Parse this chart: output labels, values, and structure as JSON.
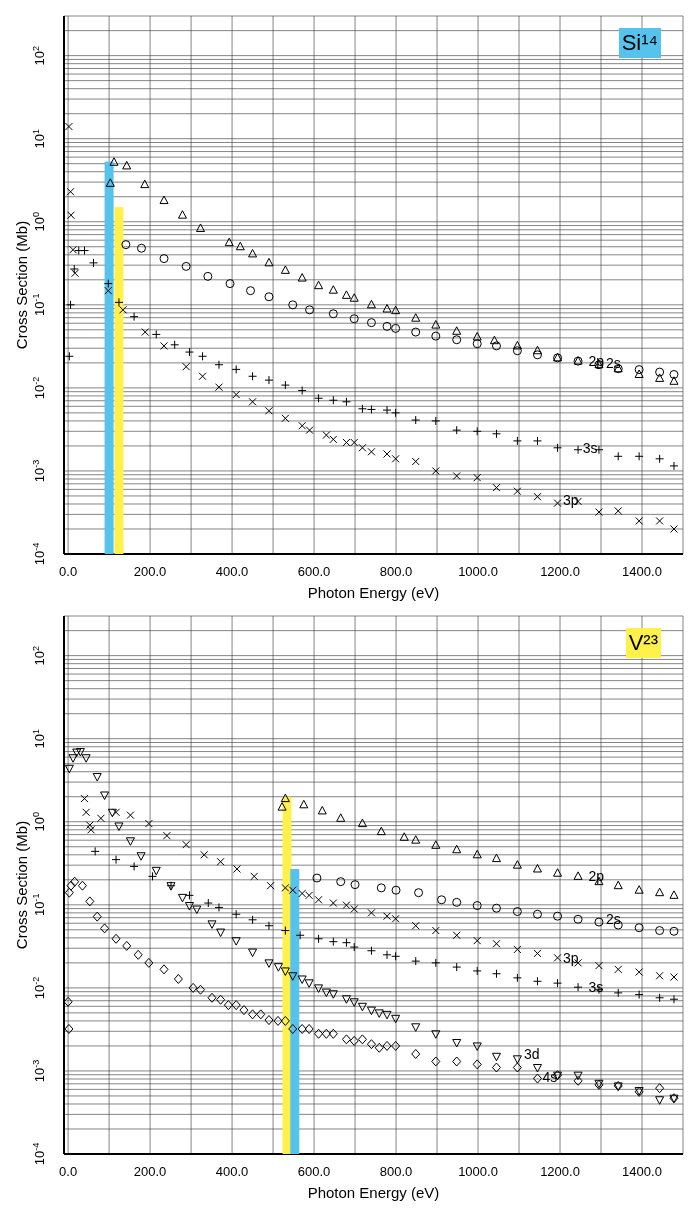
{
  "chart_data": [
    {
      "type": "scatter",
      "title": "Si¹⁴",
      "xlabel": "Photon Energy (eV)",
      "ylabel": "Cross Section (Mb)",
      "log": true,
      "grid": true,
      "xlim": [
        -10,
        1500
      ],
      "ylim": [
        0.0001,
        300
      ],
      "xticks": [
        {
          "value": 0,
          "label": "0.0"
        },
        {
          "value": 100,
          "label": null
        },
        {
          "value": 200,
          "label": "200.0"
        },
        {
          "value": 300,
          "label": null
        },
        {
          "value": 400,
          "label": "400.0"
        },
        {
          "value": 500,
          "label": null
        },
        {
          "value": 600,
          "label": "600.0"
        },
        {
          "value": 700,
          "label": null
        },
        {
          "value": 800,
          "label": "800.0"
        },
        {
          "value": 900,
          "label": null
        },
        {
          "value": 1000,
          "label": "1000.0"
        },
        {
          "value": 1100,
          "label": null
        },
        {
          "value": 1200,
          "label": "1200.0"
        },
        {
          "value": 1300,
          "label": null
        },
        {
          "value": 1400,
          "label": "1400.0"
        }
      ],
      "yticks": [
        {
          "value": 0.0001,
          "label": "10$^{-4}$"
        },
        {
          "value": 0.0002,
          "label": null
        },
        {
          "value": 0.0003,
          "label": null
        },
        {
          "value": 0.0004,
          "label": null
        },
        {
          "value": 0.0005,
          "label": null
        },
        {
          "value": 0.0006,
          "label": null
        },
        {
          "value": 0.0007,
          "label": null
        },
        {
          "value": 0.0008,
          "label": null
        },
        {
          "value": 0.0009,
          "label": null
        },
        {
          "value": 0.001,
          "label": "10$^{-3}$"
        },
        {
          "value": 0.002,
          "label": null
        },
        {
          "value": 0.003,
          "label": null
        },
        {
          "value": 0.004,
          "label": null
        },
        {
          "value": 0.005,
          "label": null
        },
        {
          "value": 0.006,
          "label": null
        },
        {
          "value": 0.007,
          "label": null
        },
        {
          "value": 0.008,
          "label": null
        },
        {
          "value": 0.009,
          "label": null
        },
        {
          "value": 0.01,
          "label": "10$^{-2}$"
        },
        {
          "value": 0.02,
          "label": null
        },
        {
          "value": 0.03,
          "label": null
        },
        {
          "value": 0.04,
          "label": null
        },
        {
          "value": 0.05,
          "label": null
        },
        {
          "value": 0.06,
          "label": null
        },
        {
          "value": 0.07,
          "label": null
        },
        {
          "value": 0.08,
          "label": null
        },
        {
          "value": 0.09,
          "label": null
        },
        {
          "value": 0.1,
          "label": "10$^{-1}$"
        },
        {
          "value": 0.2,
          "label": null
        },
        {
          "value": 0.3,
          "label": null
        },
        {
          "value": 0.4,
          "label": null
        },
        {
          "value": 0.5,
          "label": null
        },
        {
          "value": 0.6,
          "label": null
        },
        {
          "value": 0.7,
          "label": null
        },
        {
          "value": 0.8,
          "label": null
        },
        {
          "value": 0.9,
          "label": null
        },
        {
          "value": 1,
          "label": "10$^{0}$"
        },
        {
          "value": 2,
          "label": null
        },
        {
          "value": 3,
          "label": null
        },
        {
          "value": 4,
          "label": null
        },
        {
          "value": 5,
          "label": null
        },
        {
          "value": 6,
          "label": null
        },
        {
          "value": 7,
          "label": null
        },
        {
          "value": 8,
          "label": null
        },
        {
          "value": 9,
          "label": null
        },
        {
          "value": 10,
          "label": "10$^{1}$"
        },
        {
          "value": 20,
          "label": null
        },
        {
          "value": 30,
          "label": null
        },
        {
          "value": 40,
          "label": null
        },
        {
          "value": 50,
          "label": null
        },
        {
          "value": 60,
          "label": null
        },
        {
          "value": 70,
          "label": null
        },
        {
          "value": 80,
          "label": null
        },
        {
          "value": 90,
          "label": null
        },
        {
          "value": 100,
          "label": "10$^{2}$"
        },
        {
          "value": 200,
          "label": null
        }
      ],
      "series": [
        {
          "type": "bar",
          "color": "#55c3ec",
          "x": [
            100
          ],
          "values": [
            5.3
          ]
        },
        {
          "type": "bar",
          "color": "#fff04a",
          "x": [
            124
          ],
          "values": [
            1.5
          ]
        },
        {
          "marker": "triangle",
          "color": "#000000",
          "x": [
            103,
            112,
            143,
            187,
            234,
            279,
            323,
            393,
            420,
            450,
            490,
            530,
            571,
            611,
            647,
            679,
            698,
            740,
            778,
            799,
            848,
            897,
            948,
            998,
            1040,
            1096,
            1145,
            1194,
            1244,
            1295,
            1342,
            1393,
            1443,
            1478
          ],
          "values": [
            2.9,
            5.2,
            4.7,
            2.8,
            1.8,
            1.2,
            0.83,
            0.56,
            0.5,
            0.41,
            0.32,
            0.26,
            0.21,
            0.17,
            0.15,
            0.13,
            0.12,
            0.1,
            0.089,
            0.085,
            0.069,
            0.057,
            0.048,
            0.041,
            0.037,
            0.032,
            0.028,
            0.023,
            0.021,
            0.019,
            0.017,
            0.0145,
            0.013,
            0.012
          ]
        },
        {
          "marker": "circle",
          "color": "#000000",
          "x": [
            141,
            179,
            234,
            288,
            341,
            395,
            445,
            490,
            548,
            589,
            647,
            698,
            740,
            778,
            799,
            848,
            897,
            948,
            998,
            1045,
            1096,
            1145,
            1194,
            1244,
            1295,
            1342,
            1393,
            1443,
            1478
          ],
          "values": [
            0.53,
            0.48,
            0.36,
            0.29,
            0.22,
            0.18,
            0.148,
            0.125,
            0.1,
            0.087,
            0.078,
            0.068,
            0.061,
            0.055,
            0.052,
            0.047,
            0.042,
            0.038,
            0.034,
            0.032,
            0.028,
            0.025,
            0.023,
            0.021,
            0.019,
            0.017,
            0.0166,
            0.0155,
            0.0145
          ]
        },
        {
          "marker": "cross",
          "color": "#000000",
          "x": [
            3,
            6,
            15,
            26,
            40,
            62,
            98,
            124,
            161,
            215,
            260,
            296,
            328,
            368,
            410,
            450,
            490,
            530,
            571,
            611,
            647,
            679,
            718,
            740,
            778,
            799,
            848,
            897,
            948,
            998,
            1045,
            1096,
            1145,
            1194,
            1244,
            1295,
            1342,
            1393,
            1443,
            1478
          ],
          "values": [
            0.024,
            0.1,
            0.27,
            0.45,
            0.45,
            0.32,
            0.18,
            0.107,
            0.072,
            0.044,
            0.033,
            0.027,
            0.024,
            0.019,
            0.0167,
            0.0138,
            0.0124,
            0.0108,
            0.0093,
            0.0075,
            0.0071,
            0.0068,
            0.0056,
            0.0055,
            0.0054,
            0.005,
            0.0041,
            0.004,
            0.0031,
            0.003,
            0.0028,
            0.0023,
            0.0023,
            0.0019,
            0.0018,
            0.0018,
            0.0015,
            0.0015,
            0.0014,
            0.00115
          ]
        },
        {
          "marker": "x",
          "color": "#000000",
          "x": [
            2,
            6,
            7,
            12,
            17,
            98,
            134,
            188,
            234,
            288,
            328,
            368,
            410,
            450,
            490,
            530,
            571,
            589,
            630,
            647,
            679,
            698,
            718,
            740,
            778,
            799,
            848,
            897,
            948,
            998,
            1045,
            1096,
            1145,
            1194,
            1244,
            1295,
            1342,
            1393,
            1443,
            1478
          ],
          "values": [
            14,
            2.3,
            1.2,
            0.46,
            0.24,
            0.148,
            0.087,
            0.047,
            0.032,
            0.018,
            0.0138,
            0.0102,
            0.0083,
            0.0068,
            0.0053,
            0.0043,
            0.0035,
            0.0031,
            0.0027,
            0.0024,
            0.0022,
            0.0022,
            0.0019,
            0.0017,
            0.0016,
            0.0014,
            0.0013,
            0.001,
            0.00087,
            0.00083,
            0.00063,
            0.00057,
            0.00049,
            0.00041,
            0.00043,
            0.00032,
            0.00033,
            0.00025,
            0.00025,
            0.0002
          ]
        }
      ],
      "annotations": [
        {
          "text": "2p",
          "x": 1262,
          "y": 0.021
        },
        {
          "text": "2s",
          "x": 1305,
          "y": 0.02
        },
        {
          "text": "3s",
          "x": 1248,
          "y": 0.0019
        },
        {
          "text": "3p",
          "x": 1200,
          "y": 0.00045
        }
      ]
    },
    {
      "type": "scatter",
      "title": "V²³",
      "xlabel": "Photon Energy (eV)",
      "ylabel": "Cross Section (Mb)",
      "log": true,
      "grid": true,
      "xlim": [
        -10,
        1500
      ],
      "ylim": [
        0.0001,
        300
      ],
      "xticks": [
        {
          "value": 0,
          "label": "0.0"
        },
        {
          "value": 100,
          "label": null
        },
        {
          "value": 200,
          "label": "200.0"
        },
        {
          "value": 300,
          "label": null
        },
        {
          "value": 400,
          "label": "400.0"
        },
        {
          "value": 500,
          "label": null
        },
        {
          "value": 600,
          "label": "600.0"
        },
        {
          "value": 700,
          "label": null
        },
        {
          "value": 800,
          "label": "800.0"
        },
        {
          "value": 900,
          "label": null
        },
        {
          "value": 1000,
          "label": "1000.0"
        },
        {
          "value": 1100,
          "label": null
        },
        {
          "value": 1200,
          "label": "1200.0"
        },
        {
          "value": 1300,
          "label": null
        },
        {
          "value": 1400,
          "label": "1400.0"
        }
      ],
      "yticks": [
        {
          "value": 0.0001,
          "label": "10$^{-4}$"
        },
        {
          "value": 0.0002,
          "label": null
        },
        {
          "value": 0.0003,
          "label": null
        },
        {
          "value": 0.0004,
          "label": null
        },
        {
          "value": 0.0005,
          "label": null
        },
        {
          "value": 0.0006,
          "label": null
        },
        {
          "value": 0.0007,
          "label": null
        },
        {
          "value": 0.0008,
          "label": null
        },
        {
          "value": 0.0009,
          "label": null
        },
        {
          "value": 0.001,
          "label": "10$^{-3}$"
        },
        {
          "value": 0.002,
          "label": null
        },
        {
          "value": 0.003,
          "label": null
        },
        {
          "value": 0.004,
          "label": null
        },
        {
          "value": 0.005,
          "label": null
        },
        {
          "value": 0.006,
          "label": null
        },
        {
          "value": 0.007,
          "label": null
        },
        {
          "value": 0.008,
          "label": null
        },
        {
          "value": 0.009,
          "label": null
        },
        {
          "value": 0.01,
          "label": "10$^{-2}$"
        },
        {
          "value": 0.02,
          "label": null
        },
        {
          "value": 0.03,
          "label": null
        },
        {
          "value": 0.04,
          "label": null
        },
        {
          "value": 0.05,
          "label": null
        },
        {
          "value": 0.06,
          "label": null
        },
        {
          "value": 0.07,
          "label": null
        },
        {
          "value": 0.08,
          "label": null
        },
        {
          "value": 0.09,
          "label": null
        },
        {
          "value": 0.1,
          "label": "10$^{-1}$"
        },
        {
          "value": 0.2,
          "label": null
        },
        {
          "value": 0.3,
          "label": null
        },
        {
          "value": 0.4,
          "label": null
        },
        {
          "value": 0.5,
          "label": null
        },
        {
          "value": 0.6,
          "label": null
        },
        {
          "value": 0.7,
          "label": null
        },
        {
          "value": 0.8,
          "label": null
        },
        {
          "value": 0.9,
          "label": null
        },
        {
          "value": 1,
          "label": "10$^{0}$"
        },
        {
          "value": 2,
          "label": null
        },
        {
          "value": 3,
          "label": null
        },
        {
          "value": 4,
          "label": null
        },
        {
          "value": 5,
          "label": null
        },
        {
          "value": 6,
          "label": null
        },
        {
          "value": 7,
          "label": null
        },
        {
          "value": 8,
          "label": null
        },
        {
          "value": 9,
          "label": null
        },
        {
          "value": 10,
          "label": "10$^{1}$"
        },
        {
          "value": 20,
          "label": null
        },
        {
          "value": 30,
          "label": null
        },
        {
          "value": 40,
          "label": null
        },
        {
          "value": 50,
          "label": null
        },
        {
          "value": 60,
          "label": null
        },
        {
          "value": 70,
          "label": null
        },
        {
          "value": 80,
          "label": null
        },
        {
          "value": 90,
          "label": null
        },
        {
          "value": 100,
          "label": "10$^{2}$"
        },
        {
          "value": 200,
          "label": null
        }
      ],
      "series": [
        {
          "type": "bar",
          "color": "#fff04a",
          "x": [
            534
          ],
          "values": [
            2.0
          ]
        },
        {
          "type": "bar",
          "color": "#55c3ec",
          "x": [
            553
          ],
          "values": [
            0.27
          ]
        },
        {
          "marker": "triangle",
          "color": "#000000",
          "x": [
            522,
            530,
            575,
            620,
            665,
            718,
            764,
            820,
            848,
            897,
            948,
            998,
            1045,
            1096,
            1145,
            1194,
            1244,
            1295,
            1342,
            1393,
            1443,
            1478
          ],
          "values": [
            1.5,
            1.9,
            1.6,
            1.35,
            1.1,
            0.95,
            0.76,
            0.65,
            0.6,
            0.52,
            0.46,
            0.4,
            0.36,
            0.3,
            0.27,
            0.24,
            0.22,
            0.19,
            0.17,
            0.15,
            0.14,
            0.13
          ]
        },
        {
          "marker": "circle",
          "color": "#000000",
          "x": [
            607,
            665,
            700,
            764,
            800,
            855,
            911,
            948,
            998,
            1045,
            1096,
            1145,
            1194,
            1244,
            1295,
            1342,
            1393,
            1443,
            1478
          ],
          "values": [
            0.21,
            0.19,
            0.175,
            0.16,
            0.15,
            0.14,
            0.115,
            0.107,
            0.098,
            0.091,
            0.083,
            0.077,
            0.073,
            0.067,
            0.062,
            0.057,
            0.053,
            0.049,
            0.048
          ]
        },
        {
          "marker": "x",
          "color": "#000000",
          "x": [
            40,
            44,
            53,
            56,
            80,
            117,
            152,
            197,
            241,
            288,
            332,
            372,
            412,
            454,
            494,
            530,
            548,
            571,
            588,
            611,
            647,
            679,
            698,
            740,
            778,
            799,
            848,
            897,
            948,
            998,
            1045,
            1096,
            1145,
            1194,
            1244,
            1295,
            1342,
            1393,
            1443,
            1478
          ],
          "values": [
            1.9,
            1.3,
            0.91,
            0.8,
            1.1,
            1.3,
            1.2,
            0.95,
            0.68,
            0.53,
            0.4,
            0.33,
            0.27,
            0.22,
            0.17,
            0.16,
            0.15,
            0.137,
            0.13,
            0.115,
            0.105,
            0.099,
            0.089,
            0.08,
            0.073,
            0.068,
            0.056,
            0.049,
            0.043,
            0.037,
            0.034,
            0.029,
            0.026,
            0.023,
            0.02,
            0.0185,
            0.0167,
            0.0155,
            0.014,
            0.0135
          ]
        },
        {
          "marker": "cross",
          "color": "#000000",
          "x": [
            66,
            117,
            161,
            206,
            251,
            296,
            342,
            368,
            410,
            450,
            490,
            530,
            566,
            611,
            647,
            679,
            698,
            740,
            778,
            799,
            848,
            897,
            948,
            998,
            1045,
            1096,
            1145,
            1194,
            1244,
            1295,
            1342,
            1393,
            1443,
            1478
          ],
          "values": [
            0.44,
            0.35,
            0.29,
            0.22,
            0.17,
            0.13,
            0.105,
            0.093,
            0.077,
            0.066,
            0.056,
            0.049,
            0.043,
            0.039,
            0.036,
            0.035,
            0.031,
            0.028,
            0.025,
            0.024,
            0.021,
            0.02,
            0.0178,
            0.016,
            0.0148,
            0.0132,
            0.012,
            0.0114,
            0.0102,
            0.0095,
            0.0087,
            0.0083,
            0.0076,
            0.0073
          ]
        },
        {
          "marker": "triangle-down",
          "color": "#000000",
          "x": [
            3,
            12,
            21,
            30,
            44,
            71,
            89,
            108,
            124,
            152,
            178,
            215,
            251,
            279,
            296,
            314,
            351,
            372,
            410,
            450,
            490,
            513,
            530,
            548,
            571,
            588,
            611,
            630,
            647,
            679,
            698,
            718,
            740,
            759,
            778,
            799,
            848,
            897,
            948,
            998,
            1045,
            1096,
            1145,
            1194,
            1244,
            1295,
            1342,
            1393,
            1443,
            1478
          ],
          "values": [
            4.4,
            5.9,
            6.9,
            7,
            5.9,
            3.5,
            2.1,
            1.3,
            0.89,
            0.59,
            0.39,
            0.26,
            0.17,
            0.123,
            0.098,
            0.089,
            0.059,
            0.047,
            0.037,
            0.027,
            0.02,
            0.018,
            0.016,
            0.014,
            0.0128,
            0.0115,
            0.01,
            0.0089,
            0.0085,
            0.0074,
            0.0068,
            0.006,
            0.0054,
            0.005,
            0.0048,
            0.0043,
            0.0034,
            0.0028,
            0.0022,
            0.002,
            0.0015,
            0.0014,
            0.0011,
            0.00089,
            0.00089,
            0.00071,
            0.00066,
            0.00058,
            0.00045,
            0.00047
          ]
        },
        {
          "marker": "diamond",
          "color": "#000000",
          "x": [
            0,
            2,
            3,
            7,
            16,
            35,
            53,
            71,
            89,
            117,
            143,
            171,
            197,
            234,
            269,
            305,
            323,
            351,
            372,
            391,
            410,
            429,
            450,
            470,
            490,
            512,
            530,
            548,
            571,
            588,
            611,
            630,
            647,
            679,
            698,
            718,
            740,
            759,
            778,
            799,
            848,
            897,
            948,
            998,
            1045,
            1096,
            1145,
            1194,
            1244,
            1295,
            1342,
            1393,
            1443,
            1478
          ],
          "values": [
            0.0068,
            0.0032,
            0.14,
            0.17,
            0.19,
            0.17,
            0.11,
            0.072,
            0.052,
            0.039,
            0.032,
            0.025,
            0.02,
            0.0167,
            0.0128,
            0.01,
            0.0095,
            0.0076,
            0.0072,
            0.0062,
            0.0062,
            0.0054,
            0.0048,
            0.0048,
            0.0041,
            0.004,
            0.004,
            0.0032,
            0.0032,
            0.0032,
            0.0028,
            0.0028,
            0.0028,
            0.0024,
            0.0023,
            0.0024,
            0.0021,
            0.0019,
            0.002,
            0.002,
            0.0016,
            0.0013,
            0.0013,
            0.0012,
            0.0011,
            0.0011,
            0.00081,
            0.00089,
            0.00076,
            0.00068,
            0.00066,
            0.00056,
            0.00062,
            0.00047
          ]
        }
      ],
      "annotations": [
        {
          "text": "2p",
          "x": 1262,
          "y": 0.22
        },
        {
          "text": "2s",
          "x": 1305,
          "y": 0.067
        },
        {
          "text": "3p",
          "x": 1200,
          "y": 0.023
        },
        {
          "text": "3s",
          "x": 1262,
          "y": 0.0102
        },
        {
          "text": "3d",
          "x": 1105,
          "y": 0.0016
        },
        {
          "text": "4s",
          "x": 1150,
          "y": 0.00085
        }
      ]
    }
  ]
}
